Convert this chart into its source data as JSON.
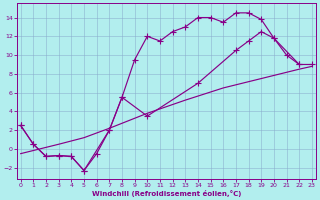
{
  "bg_color": "#b2eeee",
  "line_color": "#880088",
  "grid_color": "#88aacc",
  "xlabel": "Windchill (Refroidissement éolien,°C)",
  "xlim": [
    -0.3,
    23.3
  ],
  "ylim": [
    -3.2,
    15.5
  ],
  "xticks": [
    0,
    1,
    2,
    3,
    4,
    5,
    6,
    7,
    8,
    9,
    10,
    11,
    12,
    13,
    14,
    15,
    16,
    17,
    18,
    19,
    20,
    21,
    22,
    23
  ],
  "yticks": [
    -2,
    0,
    2,
    4,
    6,
    8,
    10,
    12,
    14
  ],
  "curve1_x": [
    0,
    1,
    2,
    3,
    4,
    5,
    6,
    7,
    8,
    9,
    10,
    11,
    12,
    13,
    14,
    15,
    16,
    17,
    18,
    19,
    20,
    21,
    22
  ],
  "curve1_y": [
    2.5,
    0.5,
    -0.8,
    -0.7,
    -0.8,
    -2.3,
    -0.5,
    2.0,
    5.5,
    9.5,
    12.0,
    11.5,
    12.5,
    13.0,
    14.0,
    14.0,
    13.5,
    14.5,
    14.5,
    13.8,
    11.8,
    10.0,
    9.0
  ],
  "curve2_x": [
    0,
    1,
    2,
    3,
    4,
    5,
    7,
    8,
    10,
    14,
    17,
    18,
    19,
    20,
    22,
    23
  ],
  "curve2_y": [
    2.5,
    0.5,
    -0.8,
    -0.7,
    -0.8,
    -2.3,
    2.0,
    5.5,
    3.5,
    7.0,
    10.5,
    11.5,
    12.5,
    11.8,
    9.0,
    9.0
  ],
  "curve3_x": [
    0,
    3,
    5,
    7,
    10,
    13,
    16,
    19,
    22,
    23
  ],
  "curve3_y": [
    -0.5,
    0.5,
    1.2,
    2.2,
    3.8,
    5.2,
    6.5,
    7.5,
    8.5,
    8.8
  ],
  "figsize": [
    3.2,
    2.0
  ],
  "dpi": 100
}
